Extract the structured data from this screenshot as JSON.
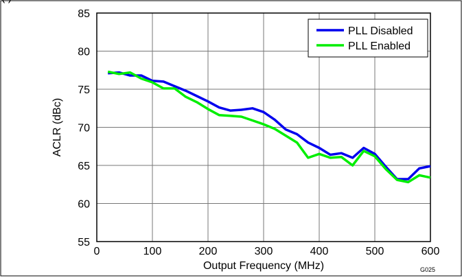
{
  "caption_fragment": "(                              )",
  "figure_id": "G025",
  "chart_data": {
    "type": "line",
    "title": "",
    "xlabel": "Output Frequency (MHz)",
    "ylabel": "ACLR (dBc)",
    "xlim": [
      0,
      600
    ],
    "ylim": [
      55,
      85
    ],
    "xticks": [
      0,
      100,
      200,
      300,
      400,
      500,
      600
    ],
    "yticks": [
      55,
      60,
      65,
      70,
      75,
      80,
      85
    ],
    "grid": true,
    "legend_position": "top-right",
    "series": [
      {
        "name": "PLL Disabled",
        "color": "#0000ee",
        "x": [
          20,
          40,
          60,
          80,
          100,
          120,
          140,
          160,
          180,
          200,
          220,
          240,
          260,
          280,
          300,
          320,
          340,
          360,
          380,
          400,
          420,
          440,
          460,
          480,
          500,
          520,
          540,
          560,
          580,
          600
        ],
        "y": [
          77.1,
          77.2,
          76.8,
          76.8,
          76.1,
          76.0,
          75.4,
          74.8,
          74.1,
          73.4,
          72.6,
          72.2,
          72.3,
          72.5,
          72.0,
          71.0,
          69.7,
          69.1,
          68.0,
          67.3,
          66.4,
          66.6,
          66.0,
          67.3,
          66.5,
          64.8,
          63.2,
          63.2,
          64.6,
          64.9
        ]
      },
      {
        "name": "PLL Enabled",
        "color": "#00ee00",
        "x": [
          20,
          40,
          60,
          80,
          100,
          120,
          140,
          160,
          180,
          200,
          220,
          240,
          260,
          280,
          300,
          320,
          340,
          360,
          380,
          400,
          420,
          440,
          460,
          480,
          500,
          520,
          540,
          560,
          580,
          600
        ],
        "y": [
          77.3,
          77.0,
          77.2,
          76.4,
          75.9,
          75.1,
          75.1,
          74.0,
          73.3,
          72.4,
          71.6,
          71.5,
          71.4,
          70.9,
          70.4,
          69.8,
          68.9,
          68.0,
          66.0,
          66.5,
          66.0,
          66.1,
          65.0,
          66.9,
          66.2,
          64.5,
          63.1,
          62.8,
          63.7,
          63.4
        ]
      }
    ]
  }
}
